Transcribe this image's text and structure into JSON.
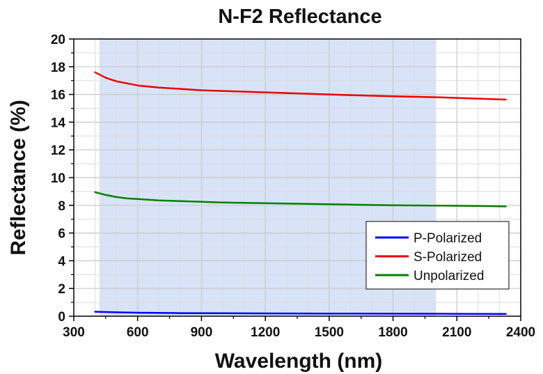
{
  "chart_data": {
    "type": "line",
    "title": "N-F2 Reflectance",
    "xlabel": "Wavelength (nm)",
    "ylabel": "Reflectance (%)",
    "xlim": [
      300,
      2400
    ],
    "ylim": [
      0,
      20
    ],
    "xticks": [
      300,
      600,
      900,
      1200,
      1500,
      1800,
      2100,
      2400
    ],
    "yticks": [
      0,
      2,
      4,
      6,
      8,
      10,
      12,
      14,
      16,
      18,
      20
    ],
    "grid": true,
    "legend_position": "bottom-right",
    "highlight_band": {
      "x": [
        420,
        2000
      ],
      "color": "#d9e3f7"
    },
    "series": [
      {
        "name": "P-Polarized",
        "color": "#0000ff",
        "x": [
          400,
          500,
          600,
          800,
          1000,
          1200,
          1500,
          1800,
          2100,
          2330
        ],
        "values": [
          0.32,
          0.28,
          0.25,
          0.22,
          0.21,
          0.2,
          0.19,
          0.18,
          0.17,
          0.16
        ]
      },
      {
        "name": "S-Polarized",
        "color": "#ee0000",
        "x": [
          400,
          450,
          500,
          550,
          600,
          700,
          800,
          900,
          1000,
          1200,
          1400,
          1600,
          1800,
          2000,
          2200,
          2330
        ],
        "values": [
          17.6,
          17.2,
          16.95,
          16.8,
          16.65,
          16.5,
          16.4,
          16.3,
          16.25,
          16.15,
          16.05,
          15.95,
          15.87,
          15.8,
          15.7,
          15.63
        ]
      },
      {
        "name": "Unpolarized",
        "color": "#008000",
        "x": [
          400,
          450,
          500,
          550,
          600,
          700,
          800,
          900,
          1000,
          1200,
          1400,
          1600,
          1800,
          2000,
          2200,
          2330
        ],
        "values": [
          8.95,
          8.75,
          8.6,
          8.5,
          8.45,
          8.35,
          8.3,
          8.25,
          8.2,
          8.15,
          8.1,
          8.05,
          8.0,
          7.98,
          7.95,
          7.92
        ]
      }
    ]
  }
}
